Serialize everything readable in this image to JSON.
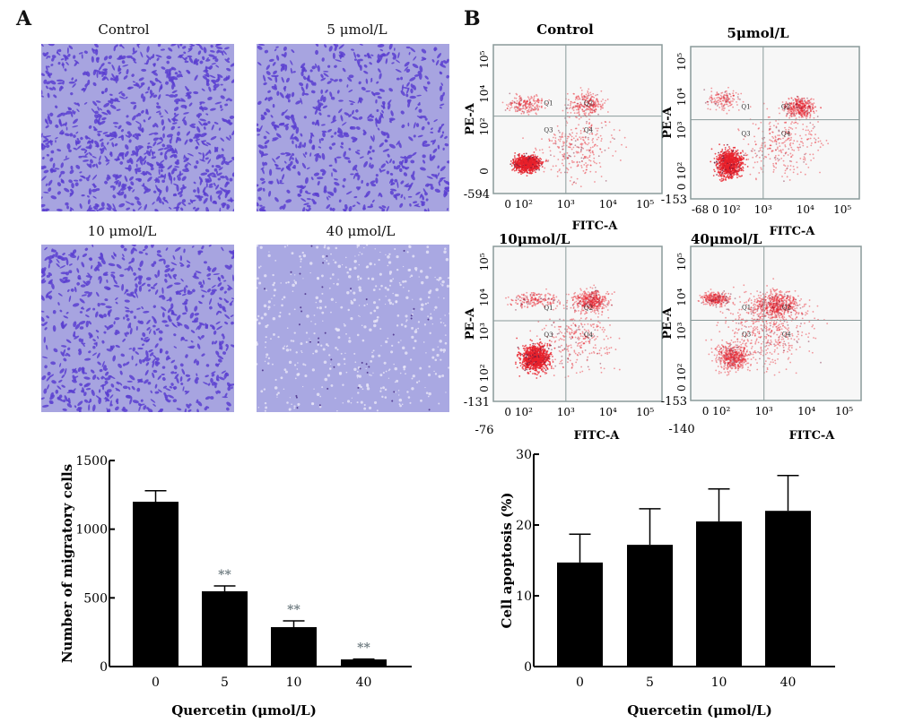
{
  "panel_a": {
    "letter": "A",
    "images": [
      {
        "label": "Control"
      },
      {
        "label": "5 μmol/L"
      },
      {
        "label": "10 μmol/L"
      },
      {
        "label": "40 μmol/L"
      }
    ]
  },
  "panel_b": {
    "letter": "B",
    "plots": [
      {
        "title": "Control",
        "xlabel": "FITC-A",
        "ylabel": "PE-A",
        "x_ticks": [
          "0 10²",
          "10³",
          "10⁴",
          "10⁵"
        ],
        "x_min": "",
        "y_ticks": [
          "10⁵",
          "10⁴",
          "10²",
          "0"
        ],
        "y_min": "-594",
        "quadrants": [
          "Q1",
          "Q2",
          "Q3",
          "Q4"
        ]
      },
      {
        "title": "5μmol/L",
        "xlabel": "FITC-A",
        "ylabel": "PE-A",
        "x_ticks": [
          "-68 0 10²",
          "10³",
          "10⁴",
          "10⁵"
        ],
        "x_min": "",
        "y_ticks": [
          "10⁵",
          "10⁴",
          "10³",
          "0 10²"
        ],
        "y_min": "-153",
        "quadrants": [
          "Q1",
          "Q2",
          "Q3",
          "Q4"
        ]
      },
      {
        "title": "10μmol/L",
        "xlabel": "FITC-A",
        "ylabel": "PE-A",
        "x_ticks": [
          "0 10²",
          "10³",
          "10⁴",
          "10⁵"
        ],
        "x_min": "-76",
        "y_ticks": [
          "10⁵",
          "10⁴",
          "10³",
          "0 10²"
        ],
        "y_min": "-131",
        "quadrants": [
          "Q1",
          "Q2",
          "Q3",
          "Q4"
        ]
      },
      {
        "title": "40μmol/L",
        "xlabel": "FITC-A",
        "ylabel": "PE-A",
        "x_ticks": [
          "0 10²",
          "10³",
          "10⁴",
          "10⁵"
        ],
        "x_min": "-140",
        "y_ticks": [
          "10⁵",
          "10⁴",
          "10³",
          "0 10²"
        ],
        "y_min": "-153",
        "quadrants": [
          "Q1",
          "Q2",
          "Q3",
          "Q4"
        ]
      }
    ]
  },
  "colors": {
    "bar": "#000000",
    "stain": "#5a3fd0",
    "background_stain": "#a7a4e0",
    "flow_dots": "#e8202a",
    "significance": "#6e7b80"
  },
  "chart_data": [
    {
      "type": "bar",
      "title": "",
      "xlabel": "Quercetin (μmol/L)",
      "ylabel": "Number of migratory cells",
      "categories": [
        "0",
        "5",
        "10",
        "40"
      ],
      "values": [
        1200,
        548,
        287,
        52
      ],
      "error_upper": [
        1280,
        587,
        333,
        55
      ],
      "annotations": [
        "",
        "**",
        "**",
        "**"
      ],
      "yticks": [
        0,
        500,
        1000,
        1500
      ],
      "ylim": [
        0,
        1500
      ],
      "grid": false
    },
    {
      "type": "bar",
      "title": "",
      "xlabel": "Quercetin (μmol/L)",
      "ylabel": "Cell apoptosis (%)",
      "categories": [
        "0",
        "5",
        "10",
        "40"
      ],
      "values": [
        14.7,
        17.2,
        20.5,
        22.0
      ],
      "error_upper": [
        18.7,
        22.3,
        25.1,
        27.0
      ],
      "annotations": [
        "",
        "",
        "",
        ""
      ],
      "yticks": [
        0,
        10,
        20,
        30
      ],
      "ylim": [
        0,
        30
      ],
      "grid": false
    }
  ]
}
